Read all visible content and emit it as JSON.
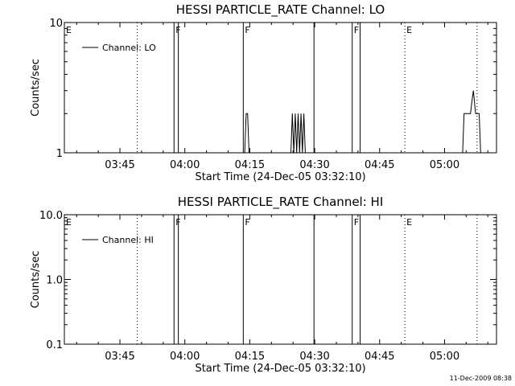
{
  "footer_timestamp": "11-Dec-2009 08:38",
  "chart_data": [
    {
      "type": "line",
      "title": "HESSI PARTICLE_RATE Channel: LO",
      "xlabel": "Start Time (24-Dec-05 03:32:10)",
      "ylabel": "Counts/sec",
      "y_scale": "log",
      "xlim": [
        "03:32:10",
        "05:12:00"
      ],
      "ylim": [
        1,
        10
      ],
      "x_tick_labels": [
        "03:45",
        "04:00",
        "04:15",
        "04:30",
        "04:45",
        "05:00"
      ],
      "y_tick_labels": [
        "1",
        "10"
      ],
      "legend_position": "top-left",
      "series": [
        {
          "name": "Channel: LO",
          "x": [
            "04:13:50",
            "04:14:10",
            "04:14:30",
            "04:14:50",
            "04:15:10",
            "04:24:30",
            "04:24:50",
            "04:25:10",
            "04:25:30",
            "04:25:50",
            "04:26:10",
            "04:26:30",
            "04:26:50",
            "04:27:10",
            "04:27:30",
            "04:27:50",
            "05:04:10",
            "05:04:30",
            "05:05:30",
            "05:06:00",
            "05:06:20",
            "05:06:40",
            "05:07:10",
            "05:08:00",
            "05:08:20"
          ],
          "y": [
            1,
            2,
            2,
            1,
            1,
            1,
            2,
            1,
            2,
            1,
            2,
            1,
            2,
            1,
            2,
            1,
            1,
            2,
            2,
            2,
            2.5,
            3,
            2,
            2,
            1
          ]
        }
      ],
      "event_lines": [
        {
          "time": "03:32:10",
          "label": "E",
          "style": "dotted"
        },
        {
          "time": "03:49:00",
          "label": "",
          "style": "dotted"
        },
        {
          "time": "03:57:30",
          "label": "F",
          "style": "solid"
        },
        {
          "time": "03:58:30",
          "label": "",
          "style": "solid"
        },
        {
          "time": "04:13:30",
          "label": "F",
          "style": "solid"
        },
        {
          "time": "04:29:50",
          "label": "",
          "style": "solid"
        },
        {
          "time": "04:38:40",
          "label": "F",
          "style": "solid"
        },
        {
          "time": "04:40:30",
          "label": "",
          "style": "solid"
        },
        {
          "time": "04:50:50",
          "label": "E",
          "style": "dotted"
        },
        {
          "time": "05:07:30",
          "label": "",
          "style": "dotted"
        }
      ]
    },
    {
      "type": "line",
      "title": "HESSI PARTICLE_RATE Channel: HI",
      "xlabel": "Start Time (24-Dec-05 03:32:10)",
      "ylabel": "Counts/sec",
      "y_scale": "log",
      "xlim": [
        "03:32:10",
        "05:12:00"
      ],
      "ylim": [
        0.1,
        10
      ],
      "x_tick_labels": [
        "03:45",
        "04:00",
        "04:15",
        "04:30",
        "04:45",
        "05:00"
      ],
      "y_tick_labels": [
        "0.1",
        "1.0",
        "10.0"
      ],
      "legend_position": "top-left",
      "series": [
        {
          "name": "Channel: HI",
          "x": [],
          "y": []
        }
      ],
      "event_lines": [
        {
          "time": "03:32:10",
          "label": "E",
          "style": "dotted"
        },
        {
          "time": "03:49:00",
          "label": "",
          "style": "dotted"
        },
        {
          "time": "03:57:30",
          "label": "F",
          "style": "solid"
        },
        {
          "time": "03:58:30",
          "label": "",
          "style": "solid"
        },
        {
          "time": "04:13:30",
          "label": "F",
          "style": "solid"
        },
        {
          "time": "04:29:50",
          "label": "",
          "style": "solid"
        },
        {
          "time": "04:38:40",
          "label": "F",
          "style": "solid"
        },
        {
          "time": "04:40:30",
          "label": "",
          "style": "solid"
        },
        {
          "time": "04:50:50",
          "label": "E",
          "style": "dotted"
        },
        {
          "time": "05:07:30",
          "label": "",
          "style": "dotted"
        }
      ]
    }
  ]
}
